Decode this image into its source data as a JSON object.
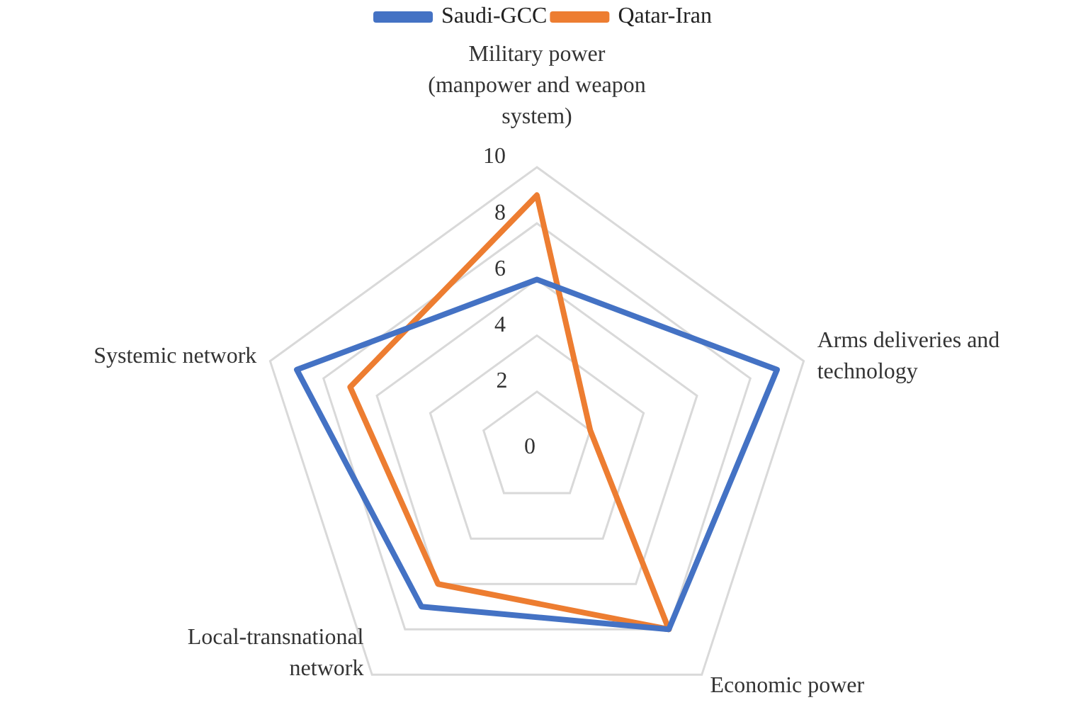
{
  "chart_data": {
    "type": "radar",
    "categories": [
      "Military power\n(manpower and weapon\nsystem)",
      "Arms deliveries and\ntechnology",
      "Economic power",
      "Local-transnational\nnetwork",
      "Systemic network"
    ],
    "series": [
      {
        "name": "Saudi-GCC",
        "color": "#4472c4",
        "values": [
          6,
          9,
          8,
          7,
          9
        ]
      },
      {
        "name": "Qatar-Iran",
        "color": "#ed7d31",
        "values": [
          9,
          2,
          8,
          6,
          7
        ]
      }
    ],
    "ylim": [
      0,
      10
    ],
    "yticks": [
      0,
      2,
      4,
      6,
      8,
      10
    ],
    "grid": true,
    "legend": "top",
    "marker": "none",
    "line_style": "solid"
  }
}
